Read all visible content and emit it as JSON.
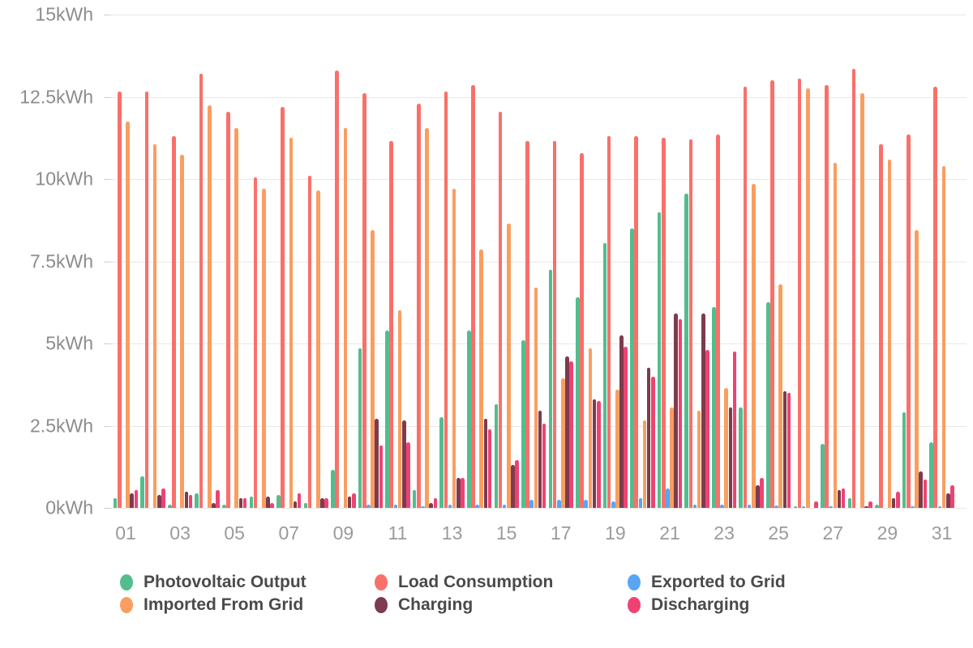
{
  "chart_data": {
    "type": "bar",
    "title": "",
    "unit": "kWh",
    "grid": true,
    "legend_position": "bottom",
    "ylim": [
      0,
      15
    ],
    "y_ticks": [
      {
        "value": 0,
        "label": "0kWh"
      },
      {
        "value": 2.5,
        "label": "2.5kWh"
      },
      {
        "value": 5,
        "label": "5kWh"
      },
      {
        "value": 7.5,
        "label": "7.5kWh"
      },
      {
        "value": 10,
        "label": "10kWh"
      },
      {
        "value": 12.5,
        "label": "12.5kWh"
      },
      {
        "value": 15,
        "label": "15kWh"
      }
    ],
    "categories": [
      "01",
      "02",
      "03",
      "04",
      "05",
      "06",
      "07",
      "08",
      "09",
      "10",
      "11",
      "12",
      "13",
      "14",
      "15",
      "16",
      "17",
      "18",
      "19",
      "20",
      "21",
      "22",
      "23",
      "24",
      "25",
      "26",
      "27",
      "28",
      "29",
      "30",
      "31"
    ],
    "x_tick_labels": [
      "01",
      "03",
      "05",
      "07",
      "09",
      "11",
      "13",
      "15",
      "17",
      "19",
      "21",
      "23",
      "25",
      "27",
      "29",
      "31"
    ],
    "series": [
      {
        "name": "Photovoltaic Output",
        "color": "#53bd8d",
        "values": [
          0.3,
          0.95,
          0.1,
          0.45,
          0.1,
          0.35,
          0.4,
          0.15,
          1.15,
          4.85,
          5.4,
          0.55,
          2.75,
          5.4,
          3.15,
          5.1,
          7.25,
          6.4,
          8.05,
          8.5,
          9.0,
          9.55,
          6.1,
          3.05,
          6.25,
          0.05,
          1.95,
          0.3,
          0.1,
          2.9,
          2.0
        ]
      },
      {
        "name": "Load Consumption",
        "color": "#f9706a",
        "values": [
          12.65,
          12.65,
          11.3,
          13.2,
          12.05,
          10.05,
          12.2,
          10.1,
          13.3,
          12.6,
          11.15,
          12.3,
          12.65,
          12.85,
          12.05,
          11.15,
          11.15,
          10.8,
          11.3,
          11.3,
          11.25,
          11.2,
          11.35,
          12.8,
          13.0,
          13.05,
          12.85,
          13.35,
          11.05,
          11.35,
          12.8
        ]
      },
      {
        "name": "Exported to Grid",
        "color": "#57a6f6",
        "values": [
          0,
          0,
          0,
          0,
          0,
          0,
          0,
          0,
          0,
          0.1,
          0.1,
          0.05,
          0.1,
          0.1,
          0.1,
          0.25,
          0.25,
          0.25,
          0.2,
          0.3,
          0.6,
          0.1,
          0.1,
          0.1,
          0.08,
          0.05,
          0.05,
          0,
          0,
          0.05,
          0.05
        ]
      },
      {
        "name": "Imported From Grid",
        "color": "#fa9e60",
        "values": [
          11.75,
          11.05,
          10.75,
          12.25,
          11.55,
          9.7,
          11.25,
          9.65,
          11.55,
          8.45,
          6.0,
          11.55,
          9.7,
          7.85,
          8.65,
          6.7,
          3.95,
          4.85,
          3.6,
          2.65,
          3.05,
          2.95,
          3.65,
          9.85,
          6.8,
          12.75,
          10.5,
          12.6,
          10.6,
          8.45,
          10.4
        ]
      },
      {
        "name": "Charging",
        "color": "#7c3b4e",
        "values": [
          0.45,
          0.4,
          0.5,
          0.15,
          0.3,
          0.35,
          0.2,
          0.3,
          0.35,
          2.7,
          2.65,
          0.15,
          0.9,
          2.7,
          1.3,
          2.95,
          4.6,
          3.3,
          5.25,
          4.25,
          5.9,
          5.9,
          3.05,
          0.7,
          3.55,
          0,
          0.55,
          0.05,
          0.3,
          1.1,
          0.45
        ]
      },
      {
        "name": "Discharging",
        "color": "#ee4372",
        "values": [
          0.55,
          0.6,
          0.4,
          0.55,
          0.3,
          0.15,
          0.45,
          0.3,
          0.45,
          1.9,
          2.0,
          0.3,
          0.9,
          2.4,
          1.45,
          2.55,
          4.45,
          3.25,
          4.9,
          4.0,
          5.75,
          4.8,
          4.75,
          0.9,
          3.5,
          0.2,
          0.6,
          0.2,
          0.5,
          0.85,
          0.7
        ]
      }
    ]
  }
}
